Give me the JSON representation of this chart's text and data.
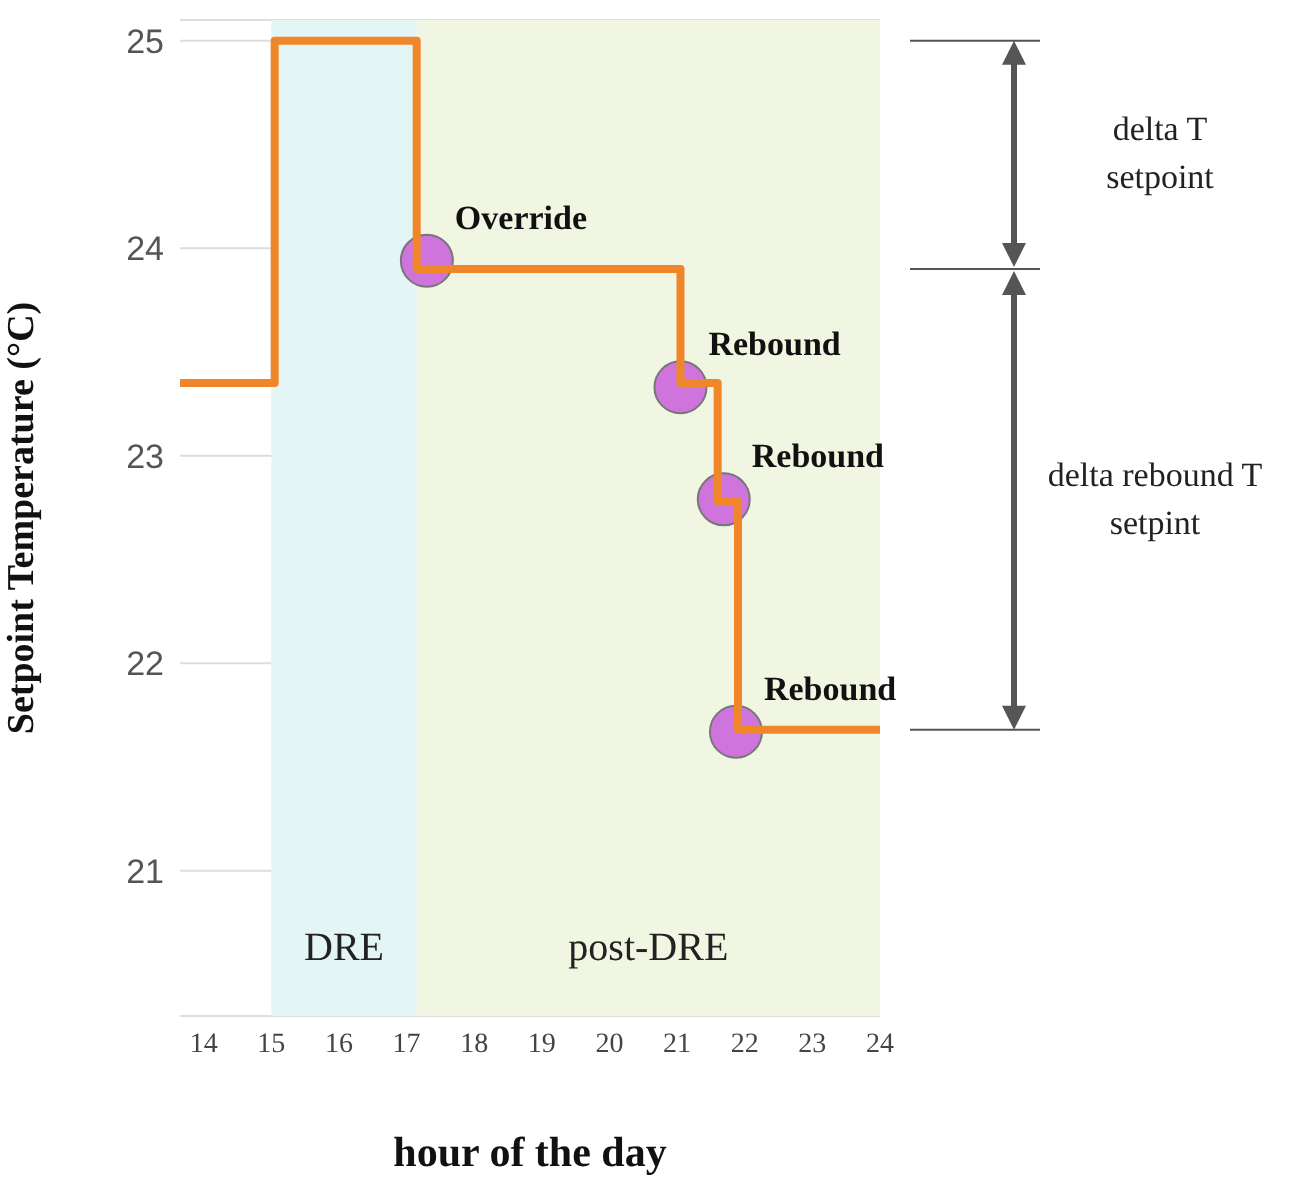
{
  "chart_data": {
    "type": "step",
    "xlabel": "hour of the day",
    "ylabel": "Setpoint Temperature (°C)",
    "xlim": [
      13.65,
      24
    ],
    "xticks": [
      14,
      15,
      16,
      17,
      18,
      19,
      20,
      21,
      22,
      23,
      24
    ],
    "ylim": [
      20.3,
      25.1
    ],
    "yticks": [
      21,
      22,
      23,
      24,
      25
    ],
    "grid": "y",
    "series": [
      {
        "type": "step",
        "color": "#f0862a",
        "x": [
          13.65,
          15.05,
          17.15,
          21.05,
          21.6,
          21.9,
          24
        ],
        "values": [
          23.35,
          25,
          23.9,
          23.35,
          22.78,
          21.68,
          21.68
        ]
      },
      {
        "type": "scatter",
        "color": "#cc66dd",
        "x": [
          17.3,
          21.05,
          21.69,
          21.87
        ],
        "values": [
          23.94,
          23.33,
          22.79,
          21.67
        ]
      }
    ],
    "bands": [
      {
        "axis": "x",
        "from": 15,
        "to": 17.15,
        "label": "DRE",
        "color": "#e4f5f5"
      },
      {
        "axis": "x",
        "from": 17.15,
        "to": 24,
        "label": "post-DRE",
        "color": "#f1f6e2"
      }
    ],
    "annotations": [
      {
        "text": "Override",
        "x": 17.3,
        "y": 23.94
      },
      {
        "text": "Rebound",
        "x": 21.05,
        "y": 23.33
      },
      {
        "text": "Rebound",
        "x": 21.69,
        "y": 22.79
      },
      {
        "text": "Rebound",
        "x": 21.87,
        "y": 21.67
      },
      "delta T setpoint",
      "delta rebound T setpint"
    ]
  }
}
